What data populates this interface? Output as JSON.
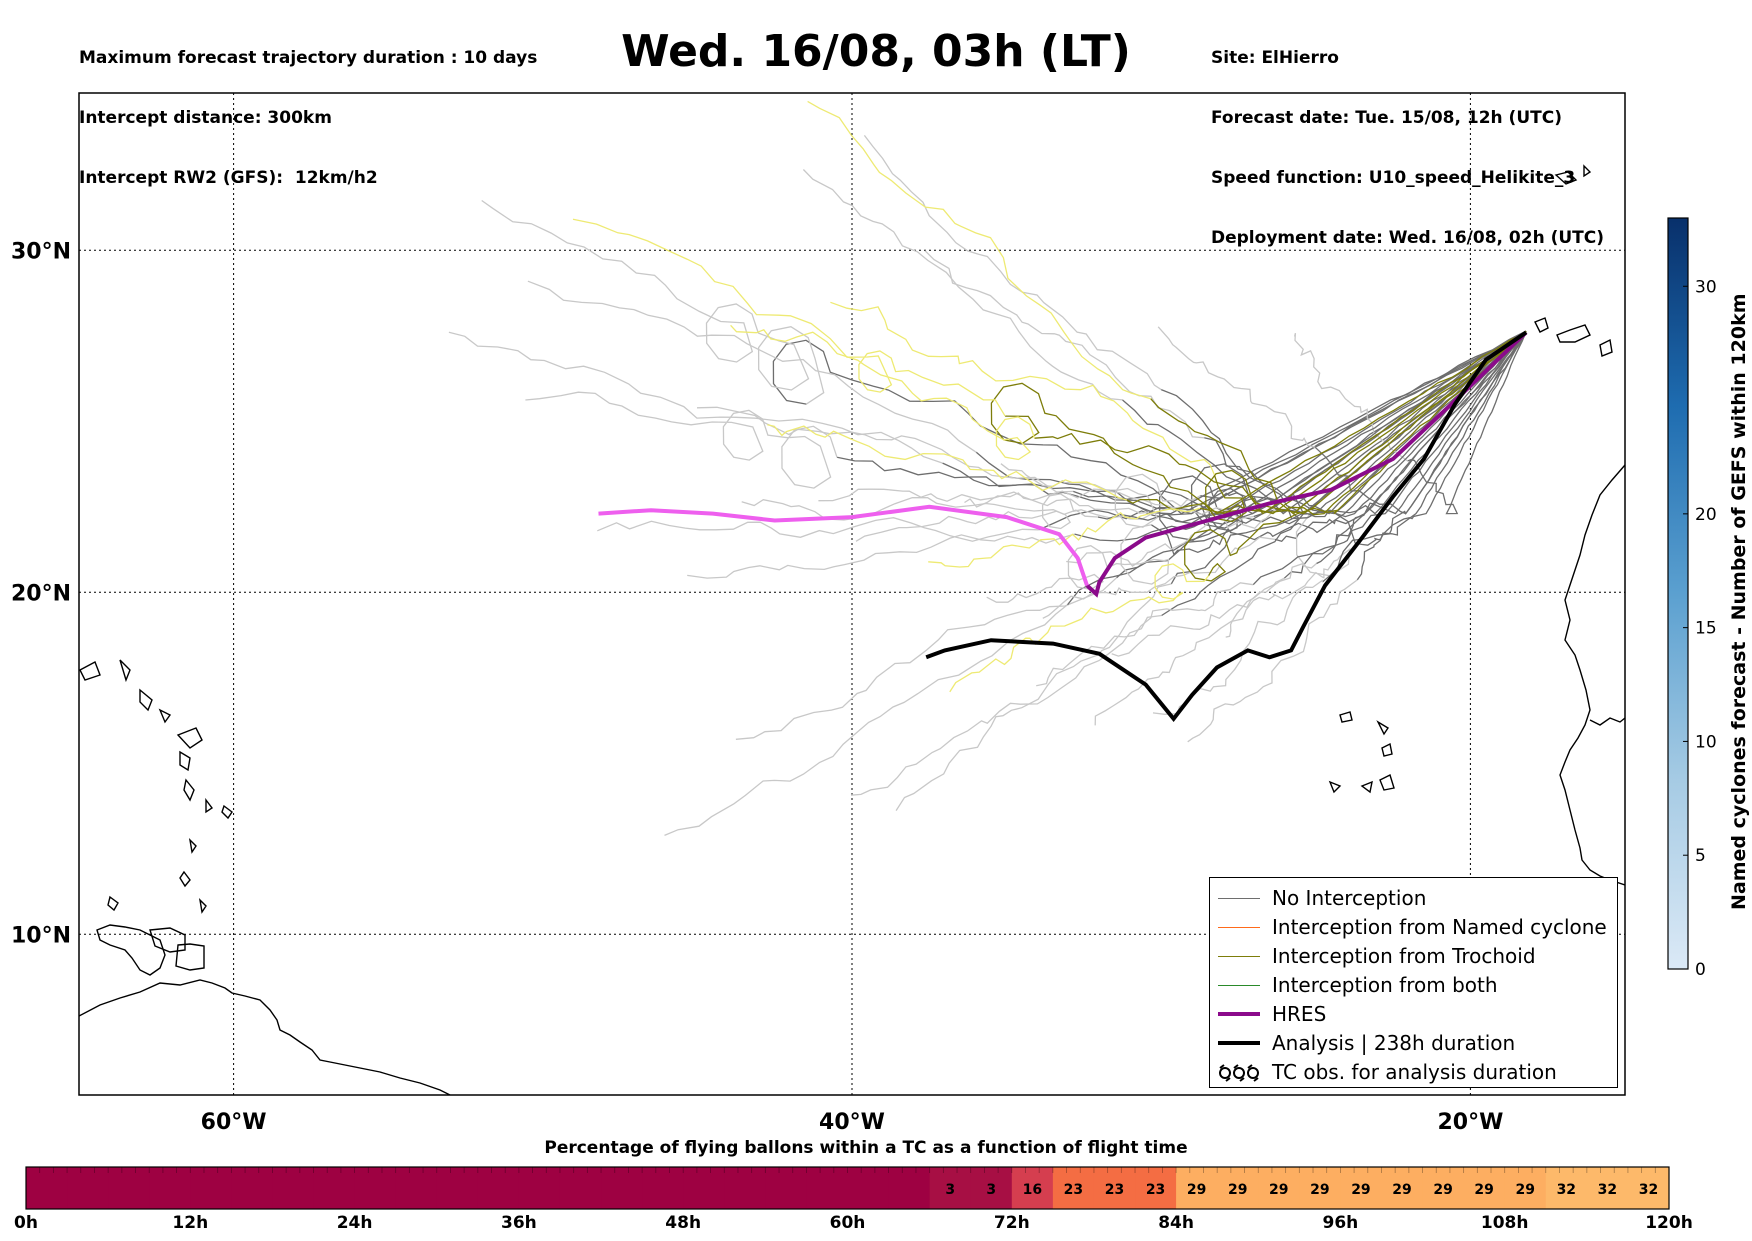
{
  "header": {
    "left_lines": [
      "Maximum forecast trajectory duration : 10 days",
      "Intercept distance: 300km",
      "Intercept RW2 (GFS):  12km/h2"
    ],
    "title": "Wed. 16/08, 03h (LT)",
    "right_lines": [
      "Site: ElHierro",
      "Forecast date: Tue. 15/08, 12h (UTC)",
      "Speed function: U10_speed_Helikite_3",
      "Deployment date: Wed. 16/08, 02h (UTC)"
    ]
  },
  "chart_data": [
    {
      "type": "map-trajectories",
      "lat_ticks": [
        {
          "value": 30,
          "label": "30°N"
        },
        {
          "value": 20,
          "label": "20°N"
        },
        {
          "value": 10,
          "label": "10°N"
        }
      ],
      "lon_ticks": [
        {
          "value": -60,
          "label": "60°W"
        },
        {
          "value": -40,
          "label": "40°W"
        },
        {
          "value": -20,
          "label": "20°W"
        }
      ],
      "extent": {
        "lon": [
          -65,
          -15
        ],
        "lat": [
          5.3,
          34.6
        ]
      },
      "grid": true,
      "colors": {
        "no_interception": "#6e6e6e",
        "no_interception_late": "#c8c8c8",
        "named_cyclone": "#ff6a1a",
        "trochoid": "#7d7d0a",
        "trochoid_late": "#eeea73",
        "both": "#2a8a2a",
        "hres": "#8b0a8b",
        "hres_late": "#ee5fee",
        "analysis": "#000000"
      },
      "legend": {
        "position": "lower-right",
        "entries": [
          {
            "label": "No Interception",
            "color": "#6e6e6e",
            "style": "thin"
          },
          {
            "label": "Interception from Named cyclone",
            "color": "#ff6a1a",
            "style": "thin"
          },
          {
            "label": "Interception from Trochoid",
            "color": "#7d7d0a",
            "style": "thin"
          },
          {
            "label": "Interception from both",
            "color": "#2a8a2a",
            "style": "thin"
          },
          {
            "label": "HRES",
            "color": "#8b0a8b",
            "style": "thick"
          },
          {
            "label": "Analysis | 238h duration",
            "color": "#000000",
            "style": "thick"
          },
          {
            "label": "TC obs. for analysis duration",
            "color": "#000000",
            "style": "symbol"
          }
        ]
      },
      "hres_track": [
        [
          -18.2,
          27.6
        ],
        [
          -20.5,
          25.6
        ],
        [
          -22.5,
          23.9
        ],
        [
          -24.5,
          23.0
        ],
        [
          -26.5,
          22.6
        ],
        [
          -28.5,
          22.1
        ],
        [
          -30.5,
          21.6
        ],
        [
          -31.5,
          21.0
        ],
        [
          -32.0,
          20.3
        ],
        [
          -32.1,
          19.95
        ],
        [
          -32.4,
          20.2
        ],
        [
          -32.7,
          21.0
        ],
        [
          -33.3,
          21.7
        ],
        [
          -35.0,
          22.2
        ],
        [
          -37.5,
          22.5
        ],
        [
          -40.0,
          22.2
        ],
        [
          -42.5,
          22.1
        ],
        [
          -44.5,
          22.3
        ],
        [
          -46.5,
          22.4
        ],
        [
          -48.2,
          22.3
        ]
      ],
      "analysis_track": [
        [
          -18.2,
          27.6
        ],
        [
          -19.5,
          26.8
        ],
        [
          -20.5,
          25.5
        ],
        [
          -21.5,
          23.9
        ],
        [
          -22.5,
          22.8
        ],
        [
          -23.5,
          21.6
        ],
        [
          -24.7,
          20.2
        ],
        [
          -25.4,
          19.0
        ],
        [
          -25.8,
          18.3
        ],
        [
          -26.5,
          18.1
        ],
        [
          -27.2,
          18.3
        ],
        [
          -28.2,
          17.8
        ],
        [
          -29.0,
          17.0
        ],
        [
          -29.6,
          16.3
        ],
        [
          -30.5,
          17.3
        ],
        [
          -32.0,
          18.2
        ],
        [
          -33.5,
          18.5
        ],
        [
          -35.5,
          18.6
        ],
        [
          -37.0,
          18.3
        ],
        [
          -37.6,
          18.1
        ]
      ]
    },
    {
      "type": "colorbar",
      "label": "Named cyclones forecast - Number of GEFS within 120km",
      "range": [
        0,
        33
      ],
      "ticks": [
        "0",
        "5",
        "10",
        "15",
        "20",
        "30"
      ],
      "tick_values": [
        0,
        5,
        10,
        15,
        20,
        30
      ],
      "colors": [
        "#dbe9f6",
        "#08306b"
      ]
    },
    {
      "type": "table",
      "title": "Percentage of flying ballons within a TC as a function of flight time",
      "time_labels": [
        "0h",
        "12h",
        "24h",
        "36h",
        "48h",
        "60h",
        "72h",
        "84h",
        "96h",
        "108h",
        "120h"
      ],
      "steps_per_hour": 3,
      "values": [
        0,
        0,
        0,
        0,
        0,
        0,
        0,
        0,
        0,
        0,
        0,
        0,
        0,
        0,
        0,
        0,
        0,
        0,
        0,
        0,
        0,
        0,
        3,
        3,
        16,
        23,
        23,
        23,
        29,
        29,
        29,
        29,
        29,
        29,
        29,
        29,
        29,
        32,
        32,
        32
      ],
      "color_scale": {
        "0": "#9e0142",
        "3": "#a70f44",
        "16": "#d53e4f",
        "23": "#f46d43",
        "29": "#fdae61",
        "32": "#fdb96a"
      }
    }
  ]
}
